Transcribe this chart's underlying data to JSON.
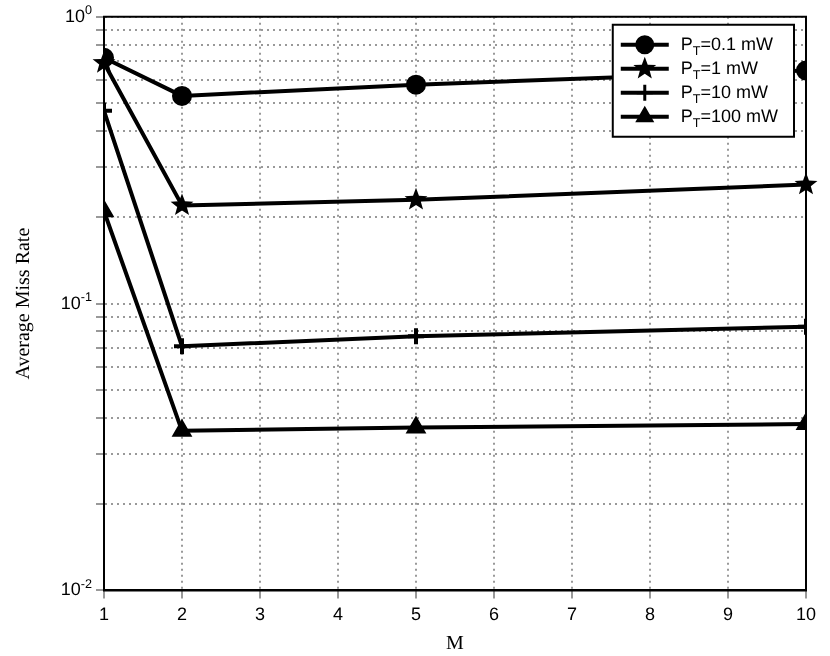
{
  "chart_data": {
    "type": "line",
    "xlabel": "M",
    "ylabel": "Average Miss Rate",
    "x": [
      1,
      2,
      5,
      10
    ],
    "series": [
      {
        "name": "P$_{T}$=0.1 mW",
        "color": "#000000",
        "marker": "circle",
        "values": [
          0.72,
          0.53,
          0.58,
          0.65
        ]
      },
      {
        "name": "P$_{T}$=1 mW",
        "color": "#000000",
        "marker": "star",
        "values": [
          0.69,
          0.22,
          0.23,
          0.26
        ]
      },
      {
        "name": "P$_{T}$=10 mW",
        "color": "#000000",
        "marker": "cross",
        "values": [
          0.47,
          0.071,
          0.077,
          0.083
        ]
      },
      {
        "name": "P$_{T}$=100 mW",
        "color": "#000000",
        "marker": "triangle",
        "values": [
          0.21,
          0.036,
          0.037,
          0.038
        ]
      }
    ],
    "log": "y",
    "xlim": [
      1,
      10
    ],
    "xticks": [
      1,
      2,
      3,
      4,
      5,
      6,
      7,
      8,
      9,
      10
    ],
    "ylim": [
      0.01,
      1
    ],
    "yticks": [
      {
        "value": 0.01,
        "label": "10$^{-2}$"
      },
      {
        "value": 0.02,
        "label": null
      },
      {
        "value": 0.03,
        "label": null
      },
      {
        "value": 0.04,
        "label": null
      },
      {
        "value": 0.05,
        "label": null
      },
      {
        "value": 0.06,
        "label": null
      },
      {
        "value": 0.07,
        "label": null
      },
      {
        "value": 0.08,
        "label": null
      },
      {
        "value": 0.09,
        "label": null
      },
      {
        "value": 0.1,
        "label": "10$^{-1}$"
      },
      {
        "value": 0.2,
        "label": null
      },
      {
        "value": 0.3,
        "label": null
      },
      {
        "value": 0.4,
        "label": null
      },
      {
        "value": 0.5,
        "label": null
      },
      {
        "value": 0.6,
        "label": null
      },
      {
        "value": 0.7,
        "label": null
      },
      {
        "value": 0.8,
        "label": null
      },
      {
        "value": 0.9,
        "label": null
      },
      {
        "value": 1,
        "label": "10$^{0}$"
      }
    ],
    "grid": true,
    "legend": "top right",
    "line_style": "solid"
  }
}
